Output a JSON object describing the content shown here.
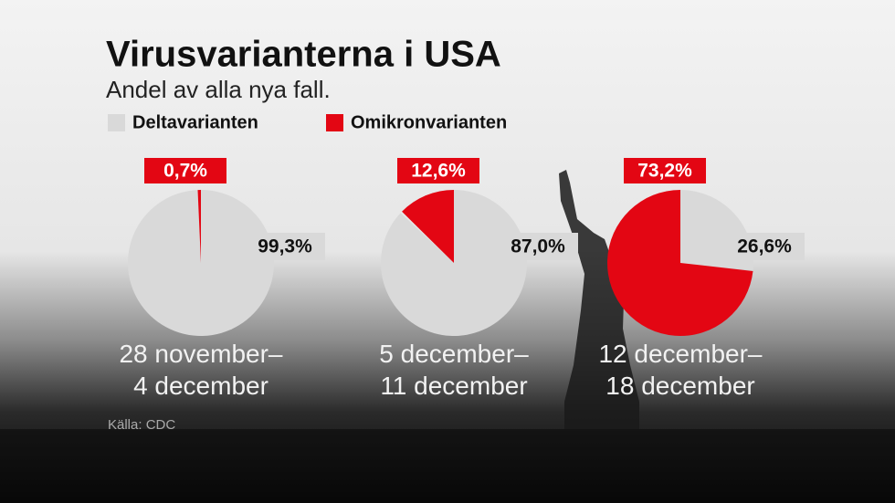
{
  "title": "Virusvarianterna i USA",
  "subtitle": "Andel av alla nya fall.",
  "legend": [
    {
      "name": "Deltavarianten",
      "color": "#d9d9d9"
    },
    {
      "name": "Omikronvarianten",
      "color": "#e30613"
    }
  ],
  "source": "Källa: CDC",
  "chart_data": [
    {
      "type": "pie",
      "title": "28 november–\n4 december",
      "categories": [
        "Deltavarianten",
        "Omikronvarianten"
      ],
      "values": [
        99.3,
        0.7
      ],
      "value_labels": [
        "99,3%",
        "0,7%"
      ]
    },
    {
      "type": "pie",
      "title": "5 december–\n11 december",
      "categories": [
        "Deltavarianten",
        "Omikronvarianten"
      ],
      "values": [
        87.0,
        12.6
      ],
      "value_labels": [
        "87,0%",
        "12,6%"
      ]
    },
    {
      "type": "pie",
      "title": "12 december–\n18 december",
      "categories": [
        "Deltavarianten",
        "Omikronvarianten"
      ],
      "values": [
        26.6,
        73.2
      ],
      "value_labels": [
        "26,6%",
        "73,2%"
      ]
    }
  ]
}
